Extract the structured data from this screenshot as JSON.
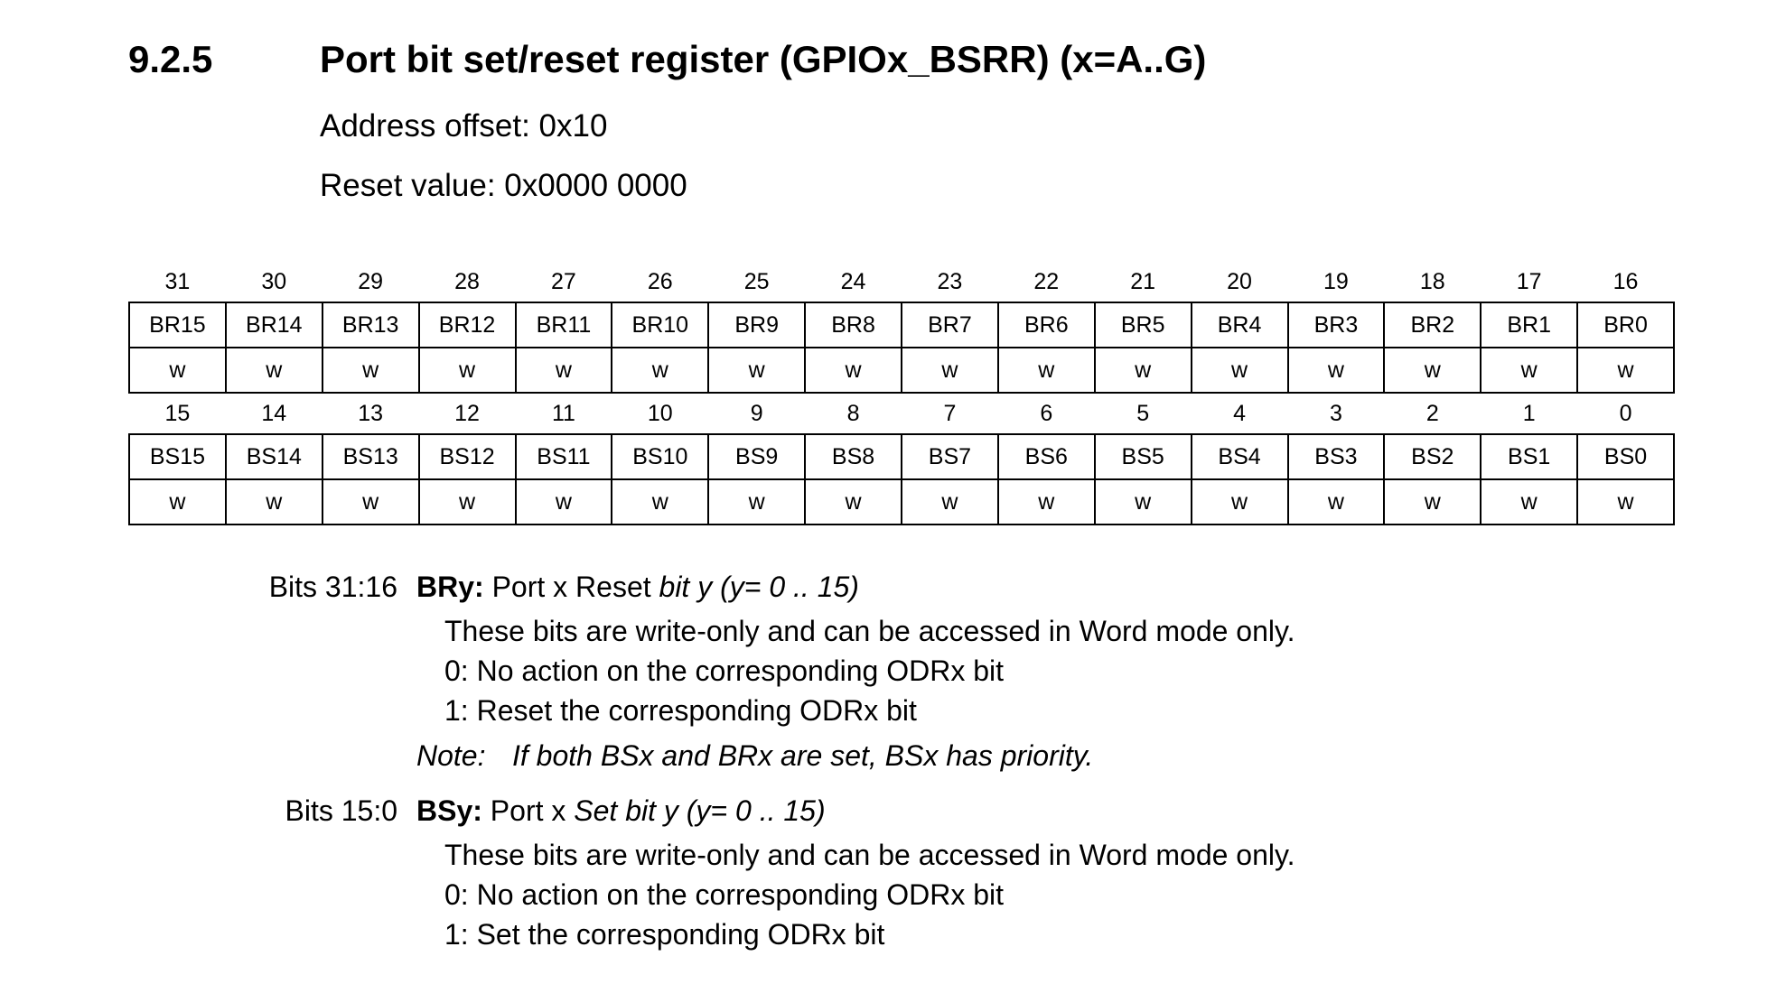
{
  "header": {
    "section_number": "9.2.5",
    "title": "Port bit set/reset register (GPIOx_BSRR) (x=A..G)",
    "address_offset": "Address offset: 0x10",
    "reset_value": "Reset value: 0x0000 0000"
  },
  "register": {
    "upper": {
      "bit_numbers": [
        "31",
        "30",
        "29",
        "28",
        "27",
        "26",
        "25",
        "24",
        "23",
        "22",
        "21",
        "20",
        "19",
        "18",
        "17",
        "16"
      ],
      "fields": [
        "BR15",
        "BR14",
        "BR13",
        "BR12",
        "BR11",
        "BR10",
        "BR9",
        "BR8",
        "BR7",
        "BR6",
        "BR5",
        "BR4",
        "BR3",
        "BR2",
        "BR1",
        "BR0"
      ],
      "access": [
        "w",
        "w",
        "w",
        "w",
        "w",
        "w",
        "w",
        "w",
        "w",
        "w",
        "w",
        "w",
        "w",
        "w",
        "w",
        "w"
      ]
    },
    "lower": {
      "bit_numbers": [
        "15",
        "14",
        "13",
        "12",
        "11",
        "10",
        "9",
        "8",
        "7",
        "6",
        "5",
        "4",
        "3",
        "2",
        "1",
        "0"
      ],
      "fields": [
        "BS15",
        "BS14",
        "BS13",
        "BS12",
        "BS11",
        "BS10",
        "BS9",
        "BS8",
        "BS7",
        "BS6",
        "BS5",
        "BS4",
        "BS3",
        "BS2",
        "BS1",
        "BS0"
      ],
      "access": [
        "w",
        "w",
        "w",
        "w",
        "w",
        "w",
        "w",
        "w",
        "w",
        "w",
        "w",
        "w",
        "w",
        "w",
        "w",
        "w"
      ]
    }
  },
  "descriptions": {
    "br": {
      "bits": "Bits 31:16",
      "name": "BRy:",
      "title_plain": " Port x Reset ",
      "title_italic": "bit y (y= 0 .. 15)",
      "line1": "These bits are write-only and can be accessed in Word mode only.",
      "line2": "0: No action on the corresponding ODRx bit",
      "line3": "1: Reset the corresponding ODRx bit",
      "note_label": "Note:",
      "note_text": "If both BSx and BRx are set, BSx has priority."
    },
    "bs": {
      "bits": "Bits 15:0",
      "name": "BSy:",
      "title_plain": " Port x ",
      "title_italic": "Set bit y (y= 0 .. 15)",
      "line1": "These bits are write-only and can be accessed in Word mode only.",
      "line2": "0: No action on the corresponding ODRx bit",
      "line3": "1: Set the corresponding ODRx bit"
    }
  }
}
